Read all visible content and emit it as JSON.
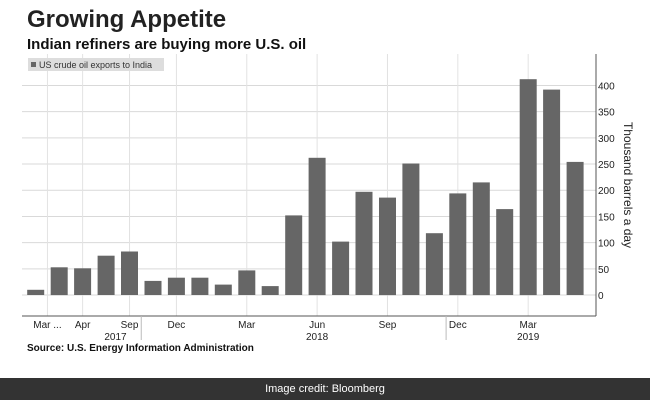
{
  "credit": "Image credit: Bloomberg",
  "chart_data": {
    "type": "bar",
    "title": "Growing Appetite",
    "subtitle": "Indian refiners are buying more U.S. oil",
    "source": "Source: U.S. Energy Information Administration",
    "ylabel": "Thousand barrels a day",
    "ylim": [
      -40,
      460
    ],
    "yticks": [
      0,
      50,
      100,
      150,
      200,
      250,
      300,
      350,
      400
    ],
    "grid": true,
    "legend_position": "top-left",
    "bar_color": "#666666",
    "series": [
      {
        "name": "US crude oil exports to India",
        "values": [
          10,
          53,
          51,
          75,
          83,
          27,
          33,
          33,
          20,
          47,
          17,
          152,
          262,
          102,
          197,
          186,
          251,
          118,
          194,
          215,
          164,
          412,
          392,
          254
        ]
      }
    ],
    "x_tick_labels": [
      {
        "label": "Mar ...",
        "index": 0.5
      },
      {
        "label": "Apr",
        "index": 2
      },
      {
        "label": "Sep",
        "index": 4
      },
      {
        "label": "Dec",
        "index": 6
      },
      {
        "label": "Mar",
        "index": 9
      },
      {
        "label": "Jun",
        "index": 12
      },
      {
        "label": "Sep",
        "index": 15
      },
      {
        "label": "Dec",
        "index": 18
      },
      {
        "label": "Mar",
        "index": 21
      }
    ],
    "year_labels": [
      {
        "label": "2017",
        "index": 3.4
      },
      {
        "label": "2018",
        "index": 12
      },
      {
        "label": "2019",
        "index": 21
      }
    ]
  }
}
